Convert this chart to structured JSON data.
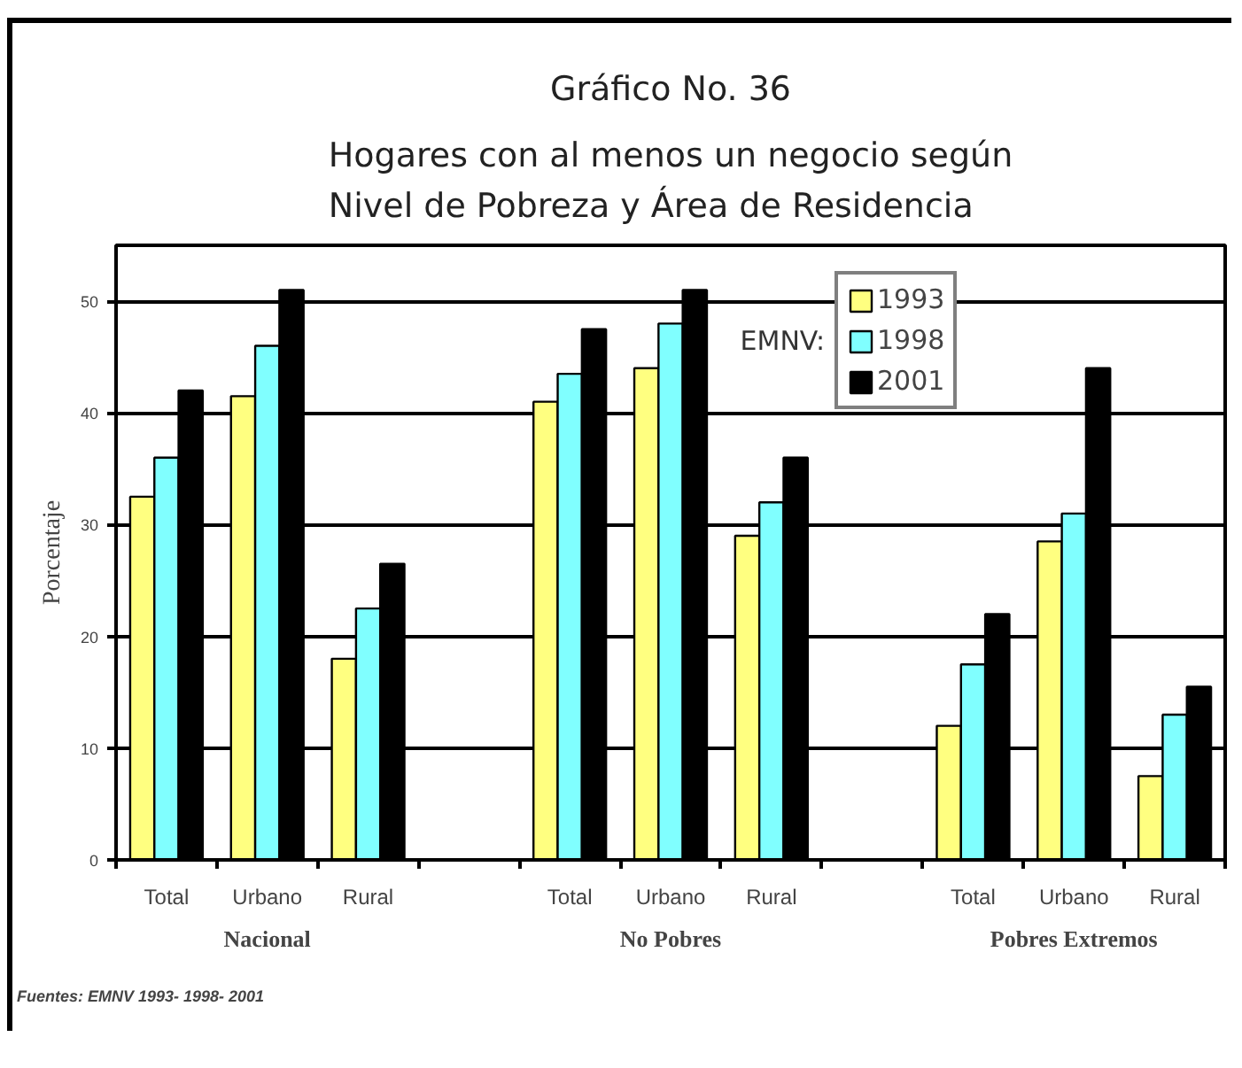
{
  "chart_data": {
    "type": "bar",
    "title": "Gráfico No. 36",
    "subtitle": "Hogares con al menos un negocio según Nivel de Pobreza y Área de Residencia",
    "ylabel": "Porcentaje",
    "legend_title": "EMNV:",
    "categories": [
      "Total",
      "Urbano",
      "Rural",
      null,
      "Total",
      "Urbano",
      "Rural",
      null,
      "Total",
      "Urbano",
      "Rural"
    ],
    "series": [
      {
        "name": "1993",
        "color": "#ffff80",
        "values": [
          32.5,
          41.5,
          18,
          null,
          41,
          44,
          29,
          null,
          12,
          28.5,
          7.5
        ]
      },
      {
        "name": "1998",
        "color": "#80ffff",
        "values": [
          36,
          46,
          22.5,
          null,
          43.5,
          48,
          32,
          null,
          17.5,
          31,
          13
        ]
      },
      {
        "name": "2001",
        "color": "#000000",
        "values": [
          42,
          51,
          26.5,
          null,
          47.5,
          51,
          36,
          null,
          22,
          44,
          15.5
        ]
      }
    ],
    "ylim": [
      0,
      55
    ],
    "yticks": [
      0,
      10,
      20,
      30,
      40,
      50
    ],
    "grid": "y",
    "legend": "top right",
    "annotations": [
      "Nacional",
      "No Pobres",
      "Pobres Extremos",
      "Fuentes: EMNV 1993- 1998- 2001"
    ]
  }
}
